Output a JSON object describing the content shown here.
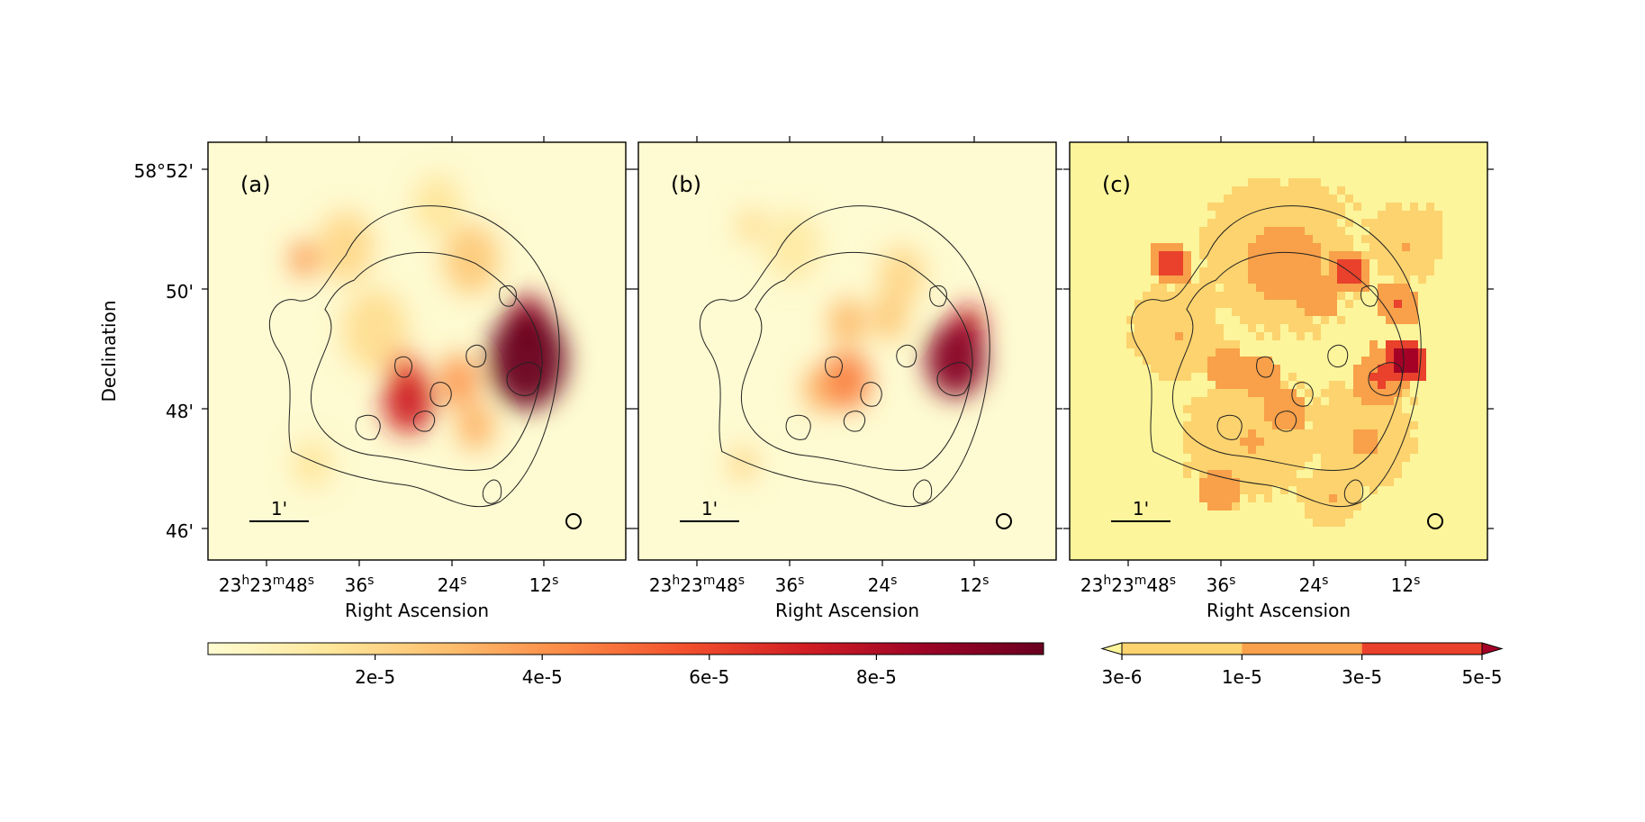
{
  "chart_data": {
    "type": "heatmap",
    "ylabel": "Declination",
    "xlabel": "Right Ascension",
    "xticks": [
      {
        "h": "23",
        "m": "23",
        "s": "48",
        "full": true
      },
      {
        "s": "36"
      },
      {
        "s": "24"
      },
      {
        "s": "12"
      }
    ],
    "yticks": [
      "58°52'",
      "50'",
      "48'",
      "46'"
    ],
    "panels": [
      {
        "label": "(a)",
        "scale_bar": "1'",
        "background": "#fefad1",
        "blobs": [
          {
            "u": 0.765,
            "v": 0.52,
            "r": 0.085,
            "level": 1.0
          },
          {
            "u": 0.765,
            "v": 0.43,
            "r": 0.045,
            "level": 0.85
          },
          {
            "u": 0.48,
            "v": 0.62,
            "r": 0.055,
            "level": 0.72
          },
          {
            "u": 0.47,
            "v": 0.55,
            "r": 0.035,
            "level": 0.55
          },
          {
            "u": 0.6,
            "v": 0.57,
            "r": 0.045,
            "level": 0.38
          },
          {
            "u": 0.64,
            "v": 0.68,
            "r": 0.04,
            "level": 0.32
          },
          {
            "u": 0.23,
            "v": 0.28,
            "r": 0.03,
            "level": 0.4
          },
          {
            "u": 0.63,
            "v": 0.28,
            "r": 0.06,
            "level": 0.25
          },
          {
            "u": 0.33,
            "v": 0.25,
            "r": 0.06,
            "level": 0.2
          },
          {
            "u": 0.4,
            "v": 0.45,
            "r": 0.07,
            "level": 0.18
          },
          {
            "u": 0.25,
            "v": 0.77,
            "r": 0.04,
            "level": 0.15
          },
          {
            "u": 0.55,
            "v": 0.15,
            "r": 0.05,
            "level": 0.15
          }
        ]
      },
      {
        "label": "(b)",
        "scale_bar": "1'",
        "background": "#fefad1",
        "blobs": [
          {
            "u": 0.76,
            "v": 0.52,
            "r": 0.065,
            "level": 0.92
          },
          {
            "u": 0.79,
            "v": 0.44,
            "r": 0.035,
            "level": 0.75
          },
          {
            "u": 0.5,
            "v": 0.57,
            "r": 0.05,
            "level": 0.45
          },
          {
            "u": 0.44,
            "v": 0.59,
            "r": 0.04,
            "level": 0.32
          },
          {
            "u": 0.5,
            "v": 0.43,
            "r": 0.04,
            "level": 0.3
          },
          {
            "u": 0.6,
            "v": 0.42,
            "r": 0.04,
            "level": 0.25
          },
          {
            "u": 0.25,
            "v": 0.77,
            "r": 0.03,
            "level": 0.2
          },
          {
            "u": 0.27,
            "v": 0.2,
            "r": 0.03,
            "level": 0.18
          },
          {
            "u": 0.63,
            "v": 0.32,
            "r": 0.05,
            "level": 0.2
          },
          {
            "u": 0.37,
            "v": 0.25,
            "r": 0.06,
            "level": 0.12
          }
        ]
      },
      {
        "label": "(c)",
        "scale_bar": "1'",
        "background": "#fcf59b",
        "blobs": [
          {
            "u": 0.79,
            "v": 0.52,
            "r": 0.045,
            "level": 0.95
          },
          {
            "u": 0.74,
            "v": 0.55,
            "r": 0.07,
            "level": 0.6
          },
          {
            "u": 0.5,
            "v": 0.62,
            "r": 0.06,
            "level": 0.55
          },
          {
            "u": 0.45,
            "v": 0.55,
            "r": 0.04,
            "level": 0.55
          },
          {
            "u": 0.37,
            "v": 0.54,
            "r": 0.04,
            "level": 0.5
          },
          {
            "u": 0.23,
            "v": 0.28,
            "r": 0.03,
            "level": 0.65
          },
          {
            "u": 0.65,
            "v": 0.3,
            "r": 0.03,
            "level": 0.65
          },
          {
            "u": 0.77,
            "v": 0.38,
            "r": 0.03,
            "level": 0.6
          },
          {
            "u": 0.58,
            "v": 0.36,
            "r": 0.035,
            "level": 0.55
          },
          {
            "u": 0.35,
            "v": 0.82,
            "r": 0.035,
            "level": 0.5
          },
          {
            "u": 0.5,
            "v": 0.28,
            "r": 0.18,
            "level": 0.45
          },
          {
            "u": 0.42,
            "v": 0.7,
            "r": 0.14,
            "level": 0.4
          },
          {
            "u": 0.7,
            "v": 0.7,
            "r": 0.12,
            "level": 0.42
          },
          {
            "u": 0.25,
            "v": 0.45,
            "r": 0.1,
            "level": 0.4
          },
          {
            "u": 0.8,
            "v": 0.25,
            "r": 0.08,
            "level": 0.4
          },
          {
            "u": 0.62,
            "v": 0.85,
            "r": 0.07,
            "level": 0.4
          }
        ]
      }
    ],
    "colorbar_left": {
      "min": 0,
      "max": 0.0001,
      "ticks": [
        {
          "value": 2e-05,
          "label": "2e-5"
        },
        {
          "value": 4e-05,
          "label": "4e-5"
        },
        {
          "value": 6e-05,
          "label": "6e-5"
        },
        {
          "value": 8e-05,
          "label": "8e-5"
        }
      ]
    },
    "colorbar_right": {
      "extend": "both",
      "boundaries": [
        {
          "value": 3e-06,
          "label": "3e-6"
        },
        {
          "value": 1e-05,
          "label": "1e-5"
        },
        {
          "value": 3e-05,
          "label": "3e-5"
        },
        {
          "value": 5e-05,
          "label": "5e-5"
        }
      ],
      "bin_colors": [
        "#fcd36e",
        "#f8a04a",
        "#e9412c"
      ],
      "under_color": "#fcf59b",
      "over_color": "#a50026"
    },
    "colormap": [
      "#fffcd2",
      "#fee79b",
      "#fdbf6f",
      "#fb8a46",
      "#f2502d",
      "#d11e24",
      "#9c0426",
      "#6a0020"
    ]
  }
}
